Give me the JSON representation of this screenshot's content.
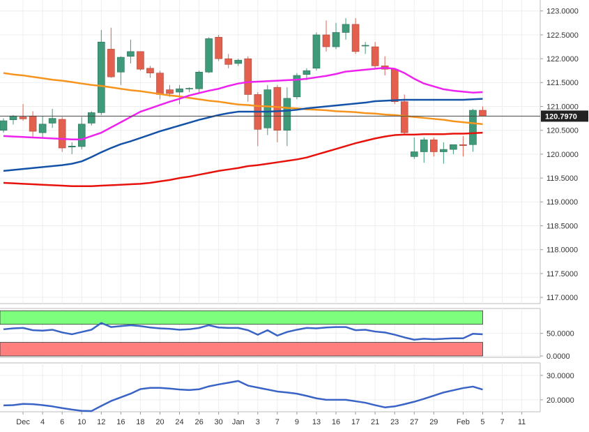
{
  "chart_data": [
    {
      "type": "candlestick",
      "categories": [
        null,
        null,
        "Dec",
        null,
        "4",
        null,
        "6",
        null,
        "10",
        null,
        "12",
        null,
        "16",
        null,
        "18",
        null,
        "20",
        null,
        "24",
        null,
        "26",
        null,
        "30",
        null,
        "Jan",
        null,
        "3",
        null,
        "7",
        null,
        "9",
        null,
        "13",
        null,
        "16",
        null,
        "17",
        null,
        "21",
        null,
        "23",
        null,
        "27",
        null,
        "29",
        null,
        null,
        "Feb",
        null,
        "5",
        null,
        "7",
        null,
        "11"
      ],
      "open": [
        120.5,
        120.72,
        120.78,
        120.8,
        120.45,
        120.65,
        120.73,
        120.15,
        120.16,
        120.65,
        120.87,
        122.2,
        121.72,
        122.05,
        122.15,
        121.8,
        121.7,
        121.35,
        121.3,
        121.37,
        121.37,
        121.72,
        122.45,
        122.0,
        121.9,
        122.0,
        121.25,
        120.55,
        121.4,
        120.5,
        121.2,
        121.67,
        121.8,
        122.5,
        122.25,
        122.55,
        122.72,
        122.27,
        122.25,
        121.85,
        121.78,
        121.1,
        119.95,
        120.05,
        120.3,
        120.05,
        120.1,
        120.2,
        120.2,
        120.92,
        null,
        null,
        null,
        null
      ],
      "high": [
        120.75,
        120.82,
        121.05,
        120.9,
        120.8,
        120.95,
        120.78,
        120.25,
        120.78,
        120.9,
        122.6,
        122.65,
        122.05,
        122.4,
        122.15,
        121.85,
        121.75,
        121.45,
        121.45,
        121.4,
        121.75,
        122.45,
        122.5,
        122.1,
        122.0,
        122.05,
        121.3,
        121.45,
        121.45,
        121.4,
        121.7,
        121.8,
        122.55,
        122.8,
        122.75,
        122.85,
        122.85,
        122.35,
        122.35,
        122.05,
        121.8,
        121.25,
        120.35,
        120.35,
        120.35,
        120.25,
        120.2,
        120.38,
        120.95,
        121.0,
        null,
        null,
        null,
        null
      ],
      "low": [
        120.45,
        120.62,
        120.7,
        120.35,
        120.35,
        120.55,
        120.05,
        120.0,
        120.1,
        120.6,
        120.82,
        121.6,
        121.45,
        121.9,
        121.75,
        121.6,
        121.15,
        121.2,
        121.05,
        121.3,
        121.3,
        121.7,
        121.95,
        121.8,
        121.85,
        121.1,
        120.17,
        120.4,
        120.25,
        120.17,
        121.15,
        121.55,
        121.75,
        122.15,
        122.2,
        122.4,
        122.1,
        122.1,
        121.8,
        121.65,
        121.05,
        120.4,
        119.9,
        119.82,
        119.95,
        119.8,
        120.0,
        119.95,
        120.05,
        120.8,
        null,
        null,
        null,
        null
      ],
      "close": [
        120.7,
        120.8,
        120.74,
        120.48,
        120.63,
        120.75,
        120.13,
        120.17,
        120.63,
        120.87,
        122.35,
        121.62,
        122.03,
        122.15,
        121.78,
        121.7,
        121.25,
        121.27,
        121.37,
        121.38,
        121.72,
        122.42,
        122.0,
        121.88,
        121.97,
        121.25,
        120.52,
        121.35,
        120.5,
        121.17,
        121.65,
        121.75,
        122.5,
        122.25,
        122.55,
        122.72,
        122.15,
        122.28,
        121.85,
        121.78,
        121.1,
        120.45,
        120.05,
        120.3,
        120.05,
        120.1,
        120.2,
        120.18,
        120.92,
        120.8,
        null,
        null,
        null,
        null
      ],
      "up_color": "#3e9a78",
      "down_color": "#e2604d",
      "series": [
        {
          "color": "#f7941d",
          "values": [
            121.7,
            121.67,
            121.65,
            121.62,
            121.59,
            121.56,
            121.54,
            121.51,
            121.48,
            121.45,
            121.43,
            121.4,
            121.37,
            121.34,
            121.32,
            121.29,
            121.26,
            121.23,
            121.21,
            121.18,
            121.15,
            121.12,
            121.1,
            121.07,
            121.04,
            121.03,
            121.01,
            121.0,
            120.99,
            120.97,
            120.96,
            120.94,
            120.93,
            120.92,
            120.9,
            120.89,
            120.88,
            120.86,
            120.85,
            120.83,
            120.82,
            120.8,
            120.78,
            120.76,
            120.74,
            120.72,
            120.69,
            120.67,
            120.65,
            120.63,
            null,
            null,
            null,
            null
          ]
        },
        {
          "color": "#1452a8",
          "values": [
            119.65,
            119.67,
            119.69,
            119.71,
            119.73,
            119.75,
            119.77,
            119.8,
            119.85,
            119.94,
            120.04,
            120.13,
            120.21,
            120.27,
            120.34,
            120.41,
            120.48,
            120.54,
            120.6,
            120.66,
            120.72,
            120.77,
            120.82,
            120.86,
            120.89,
            120.89,
            120.89,
            120.89,
            120.9,
            120.91,
            120.93,
            120.96,
            120.98,
            121.0,
            121.02,
            121.04,
            121.06,
            121.08,
            121.11,
            121.12,
            121.13,
            121.14,
            121.14,
            121.14,
            121.14,
            121.14,
            121.14,
            121.14,
            121.15,
            121.16,
            null,
            null,
            null,
            null
          ]
        },
        {
          "color": "#ee22ee",
          "values": [
            120.38,
            120.37,
            120.36,
            120.35,
            120.34,
            120.33,
            120.32,
            120.31,
            120.31,
            120.38,
            120.45,
            120.56,
            120.67,
            120.78,
            120.89,
            120.96,
            121.03,
            121.1,
            121.16,
            121.23,
            121.28,
            121.33,
            121.37,
            121.43,
            121.48,
            121.51,
            121.52,
            121.53,
            121.54,
            121.55,
            121.56,
            121.58,
            121.61,
            121.64,
            121.68,
            121.73,
            121.75,
            121.77,
            121.79,
            121.81,
            121.79,
            121.7,
            121.58,
            121.48,
            121.42,
            121.36,
            121.33,
            121.31,
            121.29,
            121.3,
            null,
            null,
            null,
            null
          ]
        },
        {
          "color": "#e8120c",
          "values": [
            119.4,
            119.39,
            119.38,
            119.37,
            119.36,
            119.35,
            119.34,
            119.33,
            119.33,
            119.33,
            119.34,
            119.35,
            119.36,
            119.37,
            119.38,
            119.4,
            119.43,
            119.46,
            119.5,
            119.53,
            119.57,
            119.61,
            119.65,
            119.68,
            119.71,
            119.75,
            119.77,
            119.8,
            119.83,
            119.86,
            119.89,
            119.93,
            119.99,
            120.05,
            120.11,
            120.17,
            120.23,
            120.28,
            120.33,
            120.37,
            120.4,
            120.41,
            120.41,
            120.42,
            120.42,
            120.42,
            120.43,
            120.43,
            120.44,
            120.45,
            null,
            null,
            null,
            null
          ]
        }
      ],
      "last_price": {
        "value": 120.797,
        "label": "120.7970"
      },
      "ylim": [
        116.87,
        123.23
      ],
      "yticks": [
        {
          "value": 117,
          "label": "117.0000"
        },
        {
          "value": 117.5,
          "label": "117.5000"
        },
        {
          "value": 118,
          "label": "118.0000"
        },
        {
          "value": 118.5,
          "label": "118.5000"
        },
        {
          "value": 119,
          "label": "119.0000"
        },
        {
          "value": 119.5,
          "label": "119.5000"
        },
        {
          "value": 120,
          "label": "120.0000"
        },
        {
          "value": 120.5,
          "label": "120.5000"
        },
        {
          "value": 121,
          "label": "121.0000"
        },
        {
          "value": 121.5,
          "label": "121.5000"
        },
        {
          "value": 122,
          "label": "122.0000"
        },
        {
          "value": 122.5,
          "label": "122.5000"
        },
        {
          "value": 123,
          "label": "123.0000"
        }
      ],
      "grid": true
    },
    {
      "type": "line",
      "bands": [
        {
          "from": 70,
          "to": 100,
          "color": "#7dff7d"
        },
        {
          "from": 0,
          "to": 30,
          "color": "#ff7f7f"
        }
      ],
      "series": [
        {
          "color": "#3a63c6",
          "values": [
            59,
            61,
            62,
            57,
            56,
            58,
            52,
            48,
            53,
            58,
            73,
            64,
            66,
            68,
            66,
            63,
            61,
            60,
            58,
            59,
            62,
            68,
            63,
            62,
            62,
            57,
            47,
            57,
            45,
            53,
            58,
            62,
            61,
            63,
            64,
            64,
            57,
            58,
            54,
            52,
            47,
            41,
            36,
            38,
            37,
            38,
            39,
            39,
            49,
            48,
            null,
            null,
            null,
            null
          ]
        }
      ],
      "ylim": [
        -3,
        105
      ],
      "yticks": [
        {
          "value": 0,
          "label": "0.0000"
        },
        {
          "value": 50,
          "label": "50.0000"
        }
      ],
      "grid": true
    },
    {
      "type": "line",
      "series": [
        {
          "color": "#3a63c6",
          "values": [
            17.7,
            17.8,
            18.3,
            18.2,
            17.8,
            17.3,
            16.6,
            16.0,
            15.5,
            15.4,
            17.5,
            19.5,
            21.0,
            22.5,
            24.4,
            24.9,
            24.9,
            24.6,
            24.2,
            24.0,
            24.3,
            25.5,
            26.3,
            27.0,
            27.7,
            25.8,
            25.0,
            24.2,
            23.4,
            23.0,
            22.5,
            21.6,
            20.6,
            20.0,
            20.0,
            20.0,
            19.4,
            18.8,
            17.8,
            16.9,
            17.3,
            18.2,
            19.2,
            20.4,
            21.7,
            23.0,
            23.9,
            24.8,
            25.4,
            24.2,
            null,
            null,
            null,
            null
          ]
        }
      ],
      "ylim": [
        15.1,
        35.1
      ],
      "yticks": [
        {
          "value": 20,
          "label": "20.0000"
        },
        {
          "value": 30,
          "label": "30.0000"
        }
      ],
      "grid": true
    }
  ]
}
